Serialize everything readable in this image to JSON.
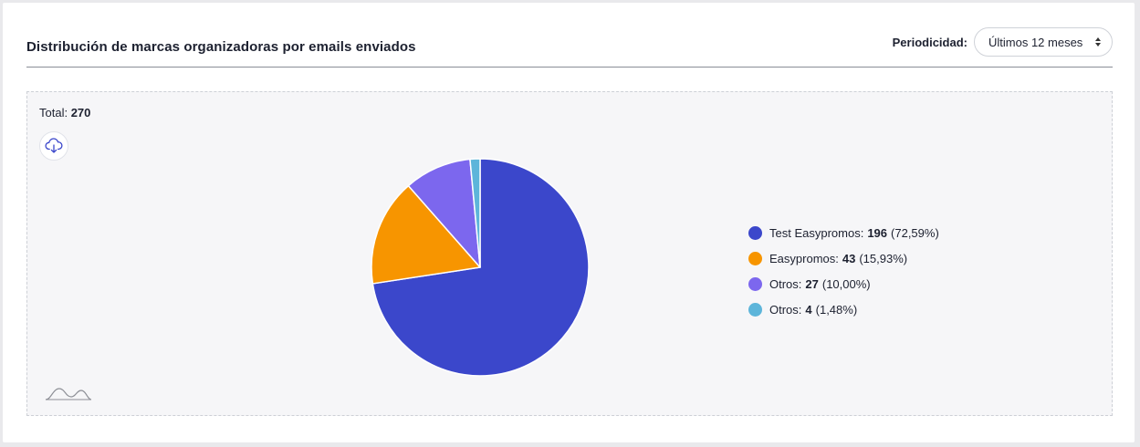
{
  "header": {
    "title": "Distribución de marcas organizadoras por emails enviados",
    "period_label": "Periodicidad:",
    "period_value": "Últimos 12 meses"
  },
  "panel": {
    "total_label": "Total:",
    "total_value": "270",
    "download_icon": "cloud-download-icon",
    "footer_icon": "wave-logo-icon"
  },
  "chart_data": {
    "type": "pie",
    "title": "",
    "total": 270,
    "slices": [
      {
        "label": "Test Easypromos",
        "value": 196,
        "percent": "72,59%",
        "color": "#3b47cb"
      },
      {
        "label": "Easypromos",
        "value": 43,
        "percent": "15,93%",
        "color": "#f79500"
      },
      {
        "label": "Otros",
        "value": 27,
        "percent": "10,00%",
        "color": "#7c67ee"
      },
      {
        "label": "Otros",
        "value": 4,
        "percent": "1,48%",
        "color": "#5db5da"
      }
    ],
    "legend_position": "right"
  }
}
